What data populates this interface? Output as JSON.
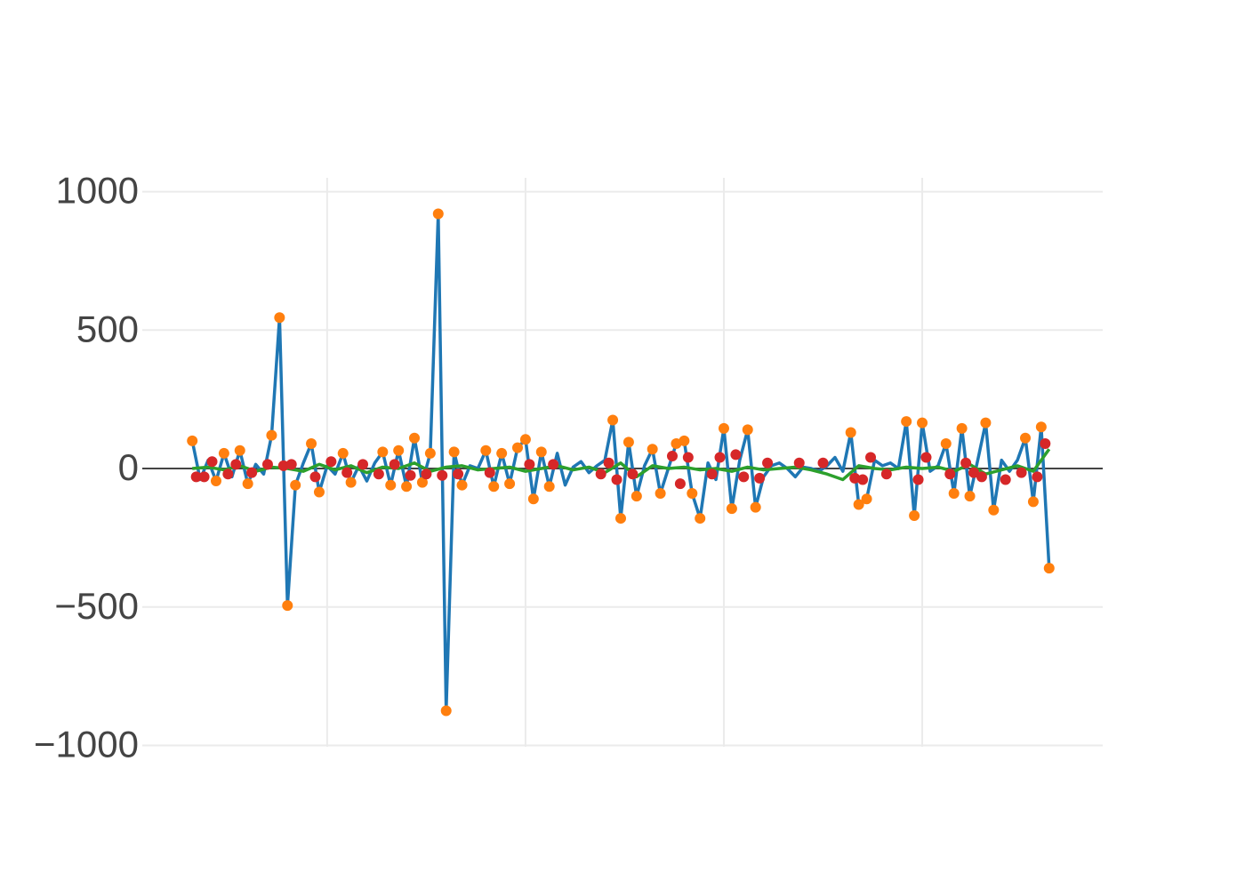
{
  "chart_data": {
    "type": "line",
    "xlim": [
      3.4,
      245.5
    ],
    "xticks": [
      50,
      100,
      150,
      200
    ],
    "ylim": [
      -1005,
      1050
    ],
    "yticks": [
      1000,
      500,
      0,
      {
        "value": -500,
        "label": "−500"
      },
      {
        "value": -1000,
        "label": "−1000"
      }
    ],
    "grid": true,
    "series": [
      {
        "color": "#1f77b4",
        "mode": "lines",
        "x": [
          16,
          18,
          20,
          22,
          24,
          26,
          28,
          30,
          32,
          34,
          36,
          38,
          40,
          42,
          44,
          46,
          48,
          50,
          52,
          54,
          56,
          58,
          60,
          62,
          64,
          66,
          68,
          70,
          72,
          74,
          76,
          78,
          80,
          82,
          84,
          86,
          88,
          90,
          92,
          94,
          96,
          98,
          100,
          102,
          104,
          106,
          108,
          110,
          112,
          114,
          116,
          118,
          120,
          122,
          124,
          126,
          128,
          130,
          132,
          134,
          136,
          138,
          140,
          142,
          144,
          146,
          148,
          150,
          152,
          154,
          156,
          158,
          160,
          162,
          164,
          166,
          168,
          170,
          172,
          174,
          176,
          178,
          180,
          182,
          184,
          186,
          188,
          190,
          192,
          194,
          196,
          198,
          200,
          202,
          204,
          206,
          208,
          210,
          212,
          214,
          216,
          218,
          220,
          222,
          224,
          226,
          228,
          230,
          232
        ],
        "values": [
          100,
          -40,
          30,
          -45,
          55,
          -30,
          65,
          -55,
          15,
          -20,
          120,
          545,
          -495,
          -60,
          20,
          90,
          -85,
          10,
          -20,
          55,
          -50,
          10,
          -45,
          20,
          60,
          -60,
          65,
          -65,
          110,
          -50,
          55,
          920,
          -875,
          60,
          -60,
          10,
          0,
          65,
          -65,
          55,
          -55,
          75,
          105,
          -110,
          60,
          -65,
          55,
          -60,
          5,
          25,
          -15,
          10,
          30,
          175,
          -180,
          95,
          -100,
          10,
          70,
          -90,
          0,
          90,
          100,
          -90,
          -180,
          20,
          -40,
          145,
          -145,
          30,
          140,
          -140,
          -30,
          10,
          20,
          0,
          -30,
          5,
          0,
          -10,
          10,
          40,
          -10,
          130,
          -130,
          -110,
          30,
          10,
          20,
          0,
          170,
          -170,
          165,
          -10,
          10,
          90,
          -90,
          145,
          -100,
          30,
          165,
          -150,
          30,
          -10,
          30,
          110,
          -120,
          150,
          -360
        ]
      },
      {
        "color": "#2ca02c",
        "mode": "lines",
        "x": [
          16,
          20,
          24,
          28,
          32,
          36,
          40,
          44,
          48,
          52,
          56,
          60,
          64,
          68,
          72,
          76,
          80,
          84,
          88,
          92,
          96,
          100,
          104,
          108,
          112,
          116,
          120,
          124,
          128,
          132,
          136,
          140,
          144,
          148,
          152,
          156,
          160,
          164,
          168,
          172,
          176,
          180,
          184,
          188,
          192,
          196,
          200,
          204,
          208,
          212,
          216,
          220,
          224,
          228,
          232
        ],
        "values": [
          0,
          5,
          -5,
          10,
          -10,
          5,
          0,
          -10,
          15,
          -5,
          10,
          -15,
          5,
          0,
          20,
          -10,
          5,
          10,
          -5,
          0,
          5,
          -10,
          0,
          10,
          -5,
          5,
          -15,
          20,
          -30,
          10,
          0,
          5,
          -5,
          0,
          -10,
          5,
          -5,
          0,
          5,
          -5,
          -20,
          -40,
          10,
          0,
          -5,
          5,
          0,
          5,
          -10,
          15,
          -20,
          -5,
          10,
          -10,
          70
        ]
      },
      {
        "color": "#ff7f0e",
        "mode": "markers",
        "x": [
          16,
          22,
          24,
          28,
          30,
          36,
          38,
          40,
          42,
          46,
          48,
          54,
          56,
          64,
          66,
          68,
          70,
          72,
          74,
          76,
          78,
          80,
          82,
          84,
          90,
          92,
          94,
          96,
          98,
          100,
          102,
          104,
          106,
          122,
          124,
          126,
          128,
          132,
          134,
          138,
          140,
          142,
          144,
          150,
          152,
          156,
          158,
          182,
          184,
          186,
          196,
          198,
          200,
          206,
          208,
          210,
          212,
          216,
          218,
          226,
          228,
          230,
          232
        ],
        "values": [
          100,
          -45,
          55,
          65,
          -55,
          120,
          545,
          -495,
          -60,
          90,
          -85,
          55,
          -50,
          60,
          -60,
          65,
          -65,
          110,
          -50,
          55,
          920,
          -875,
          60,
          -60,
          65,
          -65,
          55,
          -55,
          75,
          105,
          -110,
          60,
          -65,
          175,
          -180,
          95,
          -100,
          70,
          -90,
          90,
          100,
          -90,
          -180,
          145,
          -145,
          140,
          -140,
          130,
          -130,
          -110,
          170,
          -170,
          165,
          90,
          -90,
          145,
          -100,
          165,
          -150,
          110,
          -120,
          150,
          -360
        ]
      },
      {
        "color": "#d62728",
        "mode": "markers",
        "x": [
          17,
          19,
          21,
          25,
          27,
          31,
          35,
          39,
          41,
          47,
          51,
          55,
          59,
          63,
          67,
          71,
          75,
          79,
          83,
          91,
          101,
          107,
          119,
          121,
          123,
          127,
          137,
          139,
          141,
          147,
          149,
          153,
          155,
          159,
          161,
          169,
          175,
          183,
          185,
          187,
          191,
          199,
          201,
          207,
          211,
          213,
          215,
          221,
          225,
          229,
          231
        ],
        "values": [
          -30,
          -30,
          25,
          -20,
          15,
          -15,
          15,
          10,
          15,
          -30,
          25,
          -15,
          15,
          -20,
          15,
          -25,
          -20,
          -25,
          -20,
          -15,
          15,
          15,
          -20,
          20,
          -40,
          -20,
          45,
          -55,
          40,
          -20,
          40,
          50,
          -30,
          -35,
          20,
          20,
          20,
          -35,
          -40,
          40,
          -20,
          -40,
          40,
          -20,
          20,
          -15,
          -30,
          -40,
          -15,
          -30,
          90
        ]
      }
    ]
  }
}
